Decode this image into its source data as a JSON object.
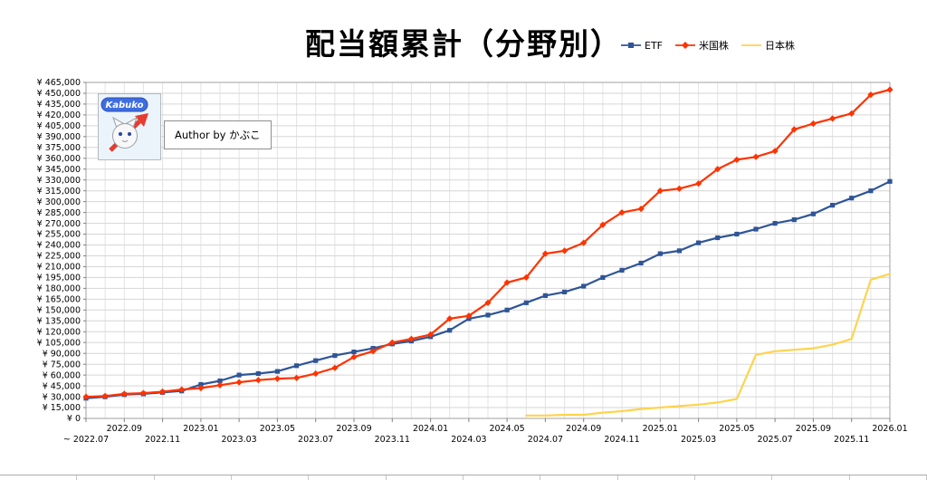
{
  "watermark": {
    "logo_text": "Kabuko",
    "author_text": "Author by かぶこ"
  },
  "chart_data": {
    "type": "line",
    "title": "配当額累計（分野別）",
    "x": [
      "2022.07",
      "2022.08",
      "2022.09",
      "2022.10",
      "2022.11",
      "2022.12",
      "2023.01",
      "2023.02",
      "2023.03",
      "2023.04",
      "2023.05",
      "2023.06",
      "2023.07",
      "2023.08",
      "2023.09",
      "2023.10",
      "2023.11",
      "2023.12",
      "2024.01",
      "2024.02",
      "2024.03",
      "2024.04",
      "2024.05",
      "2024.06",
      "2024.07",
      "2024.08",
      "2024.09",
      "2024.10",
      "2024.11",
      "2024.12",
      "2025.01",
      "2025.02",
      "2025.03",
      "2025.04",
      "2025.05",
      "2025.06",
      "2025.07",
      "2025.08",
      "2025.09",
      "2025.10",
      "2025.11",
      "2025.12",
      "2026.01"
    ],
    "series": [
      {
        "name": "ETF",
        "color": "#2F5597",
        "marker": "square",
        "values": [
          28000,
          30000,
          33000,
          34000,
          36000,
          38000,
          47000,
          52000,
          60000,
          62000,
          65000,
          73000,
          80000,
          87000,
          92000,
          97000,
          103000,
          107000,
          113000,
          122000,
          138000,
          143000,
          150000,
          160000,
          170000,
          175000,
          183000,
          195000,
          205000,
          215000,
          228000,
          232000,
          243000,
          250000,
          255000,
          262000,
          270000,
          275000,
          283000,
          295000,
          305000,
          315000,
          328000
        ]
      },
      {
        "name": "米国株",
        "color": "#FF3300",
        "marker": "diamond",
        "values": [
          30000,
          31000,
          34000,
          35000,
          37000,
          40000,
          42000,
          46000,
          50000,
          53000,
          55000,
          56000,
          62000,
          70000,
          85000,
          93000,
          105000,
          110000,
          116000,
          138000,
          142000,
          160000,
          188000,
          195000,
          228000,
          232000,
          243000,
          268000,
          285000,
          290000,
          315000,
          318000,
          325000,
          345000,
          358000,
          362000,
          370000,
          400000,
          408000,
          415000,
          422000,
          448000,
          455000
        ]
      },
      {
        "name": "日本株",
        "color": "#FFD34D",
        "marker": "none",
        "values": [
          null,
          null,
          null,
          null,
          null,
          null,
          null,
          null,
          null,
          null,
          null,
          null,
          null,
          null,
          null,
          null,
          null,
          null,
          null,
          null,
          null,
          null,
          null,
          4000,
          4000,
          5000,
          5000,
          8000,
          10000,
          13000,
          15000,
          17000,
          19000,
          22000,
          27000,
          88000,
          93000,
          95000,
          97000,
          102000,
          110000,
          192000,
          200000
        ]
      }
    ],
    "ylim": [
      0,
      465000
    ],
    "ytick_step": 15000,
    "ytick_prefix": "¥ ",
    "xtick_every": 2,
    "first_xtick_prefix": "~ ",
    "grid": true,
    "legend_position": "top-right"
  }
}
